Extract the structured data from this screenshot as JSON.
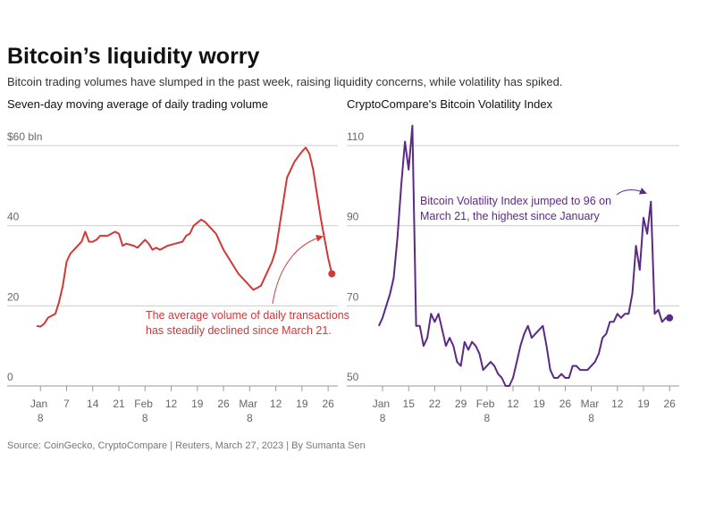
{
  "title": "Bitcoin’s liquidity worry",
  "subtitle": "Bitcoin trading volumes have slumped in the past week, raising liquidity concerns, while volatility has spiked.",
  "source": "Source: CoinGecko, CryptoCompare | Reuters, March 27, 2023 | By Sumanta Sen",
  "chart_data": [
    {
      "type": "line",
      "title": "Seven-day moving average of daily trading volume",
      "color": "#d13838",
      "annotation": [
        "The average volume of daily transactions",
        "has steadily declined since March 21."
      ],
      "x": [
        -1,
        0,
        1,
        2,
        4,
        5,
        6,
        7,
        8,
        10,
        11,
        12,
        13,
        14,
        15,
        16,
        18,
        20,
        21,
        22,
        23,
        25,
        26,
        27,
        28,
        29,
        30,
        31,
        32,
        34,
        36,
        38,
        39,
        40,
        41,
        43,
        44,
        45,
        47,
        48,
        49,
        51,
        53,
        55,
        56,
        57,
        58,
        59,
        60,
        61,
        62,
        63,
        64,
        65,
        66,
        68,
        70,
        71,
        72,
        73,
        74,
        75,
        76,
        77,
        78
      ],
      "values": [
        15,
        14.8,
        15.5,
        17,
        18,
        21,
        25,
        31,
        33,
        35,
        36,
        38.5,
        36,
        36,
        36.5,
        37.5,
        37.5,
        38.5,
        38,
        35,
        35.5,
        35,
        34.5,
        35.5,
        36.5,
        35.5,
        34,
        34.5,
        34,
        35,
        35.5,
        36,
        37.5,
        38,
        40,
        41.5,
        41,
        40,
        38,
        36,
        34,
        31,
        28,
        26,
        25,
        24,
        24.5,
        25,
        27,
        29,
        31,
        34,
        40,
        46,
        52,
        56,
        58.5,
        59.5,
        58,
        54,
        48,
        42,
        37,
        32,
        28
      ],
      "xlim": [
        -8.9,
        79.6
      ],
      "xticks": [
        {
          "value": 0,
          "label": "Jan 8"
        },
        7,
        14,
        21,
        {
          "value": 28,
          "label": "Feb 8"
        },
        {
          "value": 35,
          "label": "12"
        },
        {
          "value": 42,
          "label": "19"
        },
        {
          "value": 49,
          "label": "26"
        },
        {
          "value": 56,
          "label": "Mar 8"
        },
        {
          "value": 63,
          "label": "12"
        },
        {
          "value": 70,
          "label": "19"
        },
        {
          "value": 77,
          "label": "26"
        }
      ],
      "ylim": [
        0,
        60
      ],
      "yticks": [
        0,
        20,
        40,
        {
          "value": 60,
          "label": "$60 bln"
        }
      ],
      "grid": true
    },
    {
      "type": "line",
      "title": "CryptoCompare's Bitcoin Volatility Index",
      "color": "#5b2a86",
      "annotation": [
        "Bitcoin Volatility Index jumped to 96 on",
        "March 21, the highest since January"
      ],
      "x": [
        -1,
        0,
        1,
        2,
        3,
        4,
        5,
        6,
        7,
        8,
        9,
        10,
        11,
        12,
        13,
        14,
        15,
        16,
        17,
        18,
        19,
        20,
        21,
        22,
        23,
        24,
        25,
        26,
        27,
        28,
        29,
        30,
        31,
        32,
        33,
        34,
        35,
        36,
        37,
        38,
        39,
        40,
        41,
        42,
        43,
        44,
        45,
        46,
        47,
        48,
        49,
        50,
        51,
        52,
        53,
        54,
        55,
        56,
        57,
        58,
        59,
        60,
        61,
        62,
        63,
        64,
        65,
        66,
        67,
        68,
        69,
        70,
        71,
        72,
        73,
        74,
        75,
        76,
        77
      ],
      "values": [
        65,
        67,
        70,
        73,
        77,
        87,
        100,
        111,
        104,
        115,
        65,
        65,
        60,
        62,
        68,
        66,
        68,
        64,
        60,
        62,
        60,
        56,
        55,
        61,
        59,
        61,
        60,
        58,
        54,
        55,
        56,
        55,
        53,
        52,
        50,
        50,
        52,
        56,
        60,
        63,
        65,
        62,
        63,
        64,
        65,
        60,
        54,
        52,
        52,
        53,
        52,
        52,
        55,
        55,
        54,
        54,
        54,
        55,
        56,
        58,
        62,
        63,
        66,
        66,
        68,
        67,
        68,
        68,
        73,
        85,
        79,
        92,
        88,
        96,
        68,
        69,
        66,
        67,
        67
      ],
      "xlim": [
        -9.6,
        79.6
      ],
      "xticks": [
        {
          "value": 0,
          "label": "Jan 8"
        },
        {
          "value": 7,
          "label": "15"
        },
        {
          "value": 14,
          "label": "22"
        },
        {
          "value": 21,
          "label": "29"
        },
        {
          "value": 28,
          "label": "Feb 8"
        },
        {
          "value": 35,
          "label": "12"
        },
        {
          "value": 42,
          "label": "19"
        },
        {
          "value": 49,
          "label": "26"
        },
        {
          "value": 56,
          "label": "Mar 8"
        },
        {
          "value": 63,
          "label": "12"
        },
        {
          "value": 70,
          "label": "19"
        },
        {
          "value": 77,
          "label": "26"
        }
      ],
      "ylim": [
        50,
        110
      ],
      "yticks": [
        50,
        70,
        90,
        110
      ],
      "grid": true
    }
  ]
}
